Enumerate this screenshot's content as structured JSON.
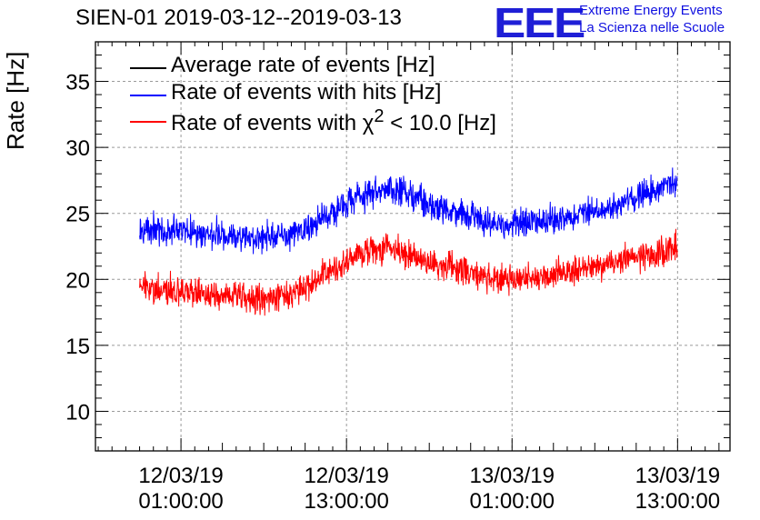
{
  "title": "SIEN-01 2019-03-12--2019-03-13",
  "logo": {
    "mark": "EEE",
    "line1": "Extreme Energy Events",
    "line2": "La Scienza nelle Scuole",
    "color": "#1f1fd6"
  },
  "chart_data": {
    "type": "line",
    "ylabel": "Rate [Hz]",
    "xlabel": "",
    "ylim": [
      7,
      38
    ],
    "y_ticks": [
      10,
      15,
      20,
      25,
      30,
      35
    ],
    "x_ticks": [
      {
        "hour": 1,
        "label1": "12/03/19",
        "label2": "01:00:00"
      },
      {
        "hour": 13,
        "label1": "12/03/19",
        "label2": "13:00:00"
      },
      {
        "hour": 25,
        "label1": "13/03/19",
        "label2": "01:00:00"
      },
      {
        "hour": 37,
        "label1": "13/03/19",
        "label2": "13:00:00"
      }
    ],
    "x_range_hours": [
      -5.2,
      40.8
    ],
    "grid": true,
    "legend_position": "top-left",
    "series": [
      {
        "name": "Average rate of events [Hz]",
        "color": "#000000",
        "x_hours": [],
        "values": []
      },
      {
        "name": "Rate of events with hits [Hz]",
        "color": "#0000ff",
        "noise": 1.0,
        "x_hours": [
          -2,
          0,
          2,
          4,
          6,
          8,
          10,
          12,
          14,
          16,
          18,
          20,
          22,
          24,
          26,
          28,
          30,
          32,
          34,
          36,
          37
        ],
        "values": [
          23.8,
          23.6,
          23.5,
          23.3,
          23.2,
          23.2,
          23.7,
          25.0,
          26.3,
          27.0,
          26.2,
          25.4,
          24.8,
          24.2,
          24.3,
          24.6,
          25.0,
          25.5,
          26.2,
          27.0,
          27.5
        ]
      },
      {
        "name": "Rate of events with χ2 < 10.0 [Hz]",
        "label_html": "Rate of events with χ<sup>2</sup> &lt; 10.0 [Hz]",
        "color": "#ff0000",
        "noise": 1.0,
        "x_hours": [
          -2,
          0,
          2,
          4,
          6,
          8,
          10,
          12,
          14,
          16,
          18,
          20,
          22,
          24,
          26,
          28,
          30,
          32,
          34,
          36,
          37
        ],
        "values": [
          19.5,
          19.2,
          19.0,
          18.8,
          18.6,
          18.7,
          19.4,
          20.8,
          22.0,
          22.5,
          21.6,
          21.0,
          20.5,
          19.9,
          20.0,
          20.3,
          20.8,
          21.2,
          21.6,
          22.2,
          22.6
        ]
      }
    ]
  }
}
